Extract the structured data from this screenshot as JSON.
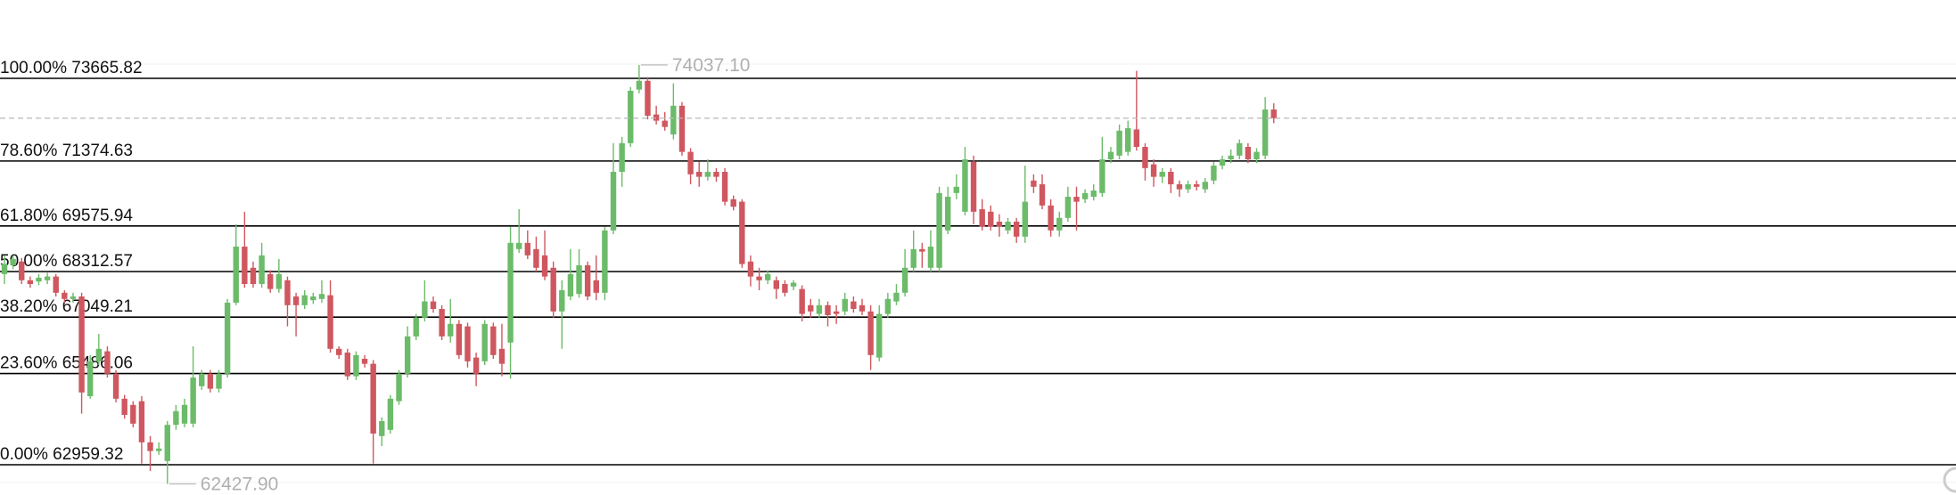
{
  "chart_data": {
    "type": "candlestick",
    "up_color": "#6cbb6a",
    "down_color": "#cf575f",
    "level_color": "#000000",
    "last_price_line": true,
    "levels": [
      {
        "label": "100.00%",
        "value": 73665.82
      },
      {
        "label": "78.60%",
        "value": 71374.63
      },
      {
        "label": "61.80%",
        "value": 69575.94
      },
      {
        "label": "50.00%",
        "value": 68312.57
      },
      {
        "label": "38.20%",
        "value": 67049.21
      },
      {
        "label": "23.60%",
        "value": 65486.06
      },
      {
        "label": "0.00%",
        "value": 62959.32
      }
    ],
    "high_marker": {
      "value": 74037.1,
      "label": "74037.10"
    },
    "low_marker": {
      "value": 62427.9,
      "label": "62427.90"
    },
    "ohlc": [
      [
        68243,
        68761,
        67967,
        68520
      ],
      [
        68485,
        68761,
        68381,
        68658
      ],
      [
        68589,
        68692,
        67967,
        68071
      ],
      [
        68071,
        68174,
        67863,
        67967
      ],
      [
        68036,
        68243,
        67933,
        68140
      ],
      [
        68071,
        68278,
        67967,
        68174
      ],
      [
        68174,
        68243,
        67622,
        67725
      ],
      [
        67725,
        67794,
        67449,
        67553
      ],
      [
        67553,
        67725,
        67449,
        67622
      ],
      [
        67622,
        67725,
        64375,
        64962
      ],
      [
        64858,
        65998,
        64789,
        65825
      ],
      [
        65825,
        66585,
        65722,
        66171
      ],
      [
        66102,
        66240,
        65376,
        65480
      ],
      [
        65480,
        65584,
        64686,
        64789
      ],
      [
        64789,
        64893,
        64237,
        64340
      ],
      [
        64617,
        64720,
        63995,
        64098
      ],
      [
        64720,
        64858,
        62993,
        63580
      ],
      [
        63580,
        63753,
        62786,
        63339
      ],
      [
        63339,
        63580,
        63235,
        63408
      ],
      [
        63062,
        64168,
        62427.9,
        64064
      ],
      [
        64064,
        64617,
        63926,
        64444
      ],
      [
        64098,
        64789,
        63995,
        64617
      ],
      [
        64098,
        66240,
        63995,
        65376
      ],
      [
        65135,
        65584,
        65031,
        65480
      ],
      [
        65480,
        65584,
        64962,
        65066
      ],
      [
        65066,
        65584,
        64962,
        65480
      ],
      [
        65480,
        67553,
        65376,
        67449
      ],
      [
        67449,
        69625,
        67380,
        69003
      ],
      [
        69003,
        69970,
        67863,
        67967
      ],
      [
        68416,
        68589,
        67863,
        67967
      ],
      [
        67967,
        69107,
        67863,
        68761
      ],
      [
        68243,
        68347,
        67725,
        67829
      ],
      [
        67829,
        68658,
        67725,
        68243
      ],
      [
        68071,
        68174,
        66793,
        67380
      ],
      [
        67622,
        67725,
        66516,
        67380
      ],
      [
        67380,
        67794,
        67276,
        67656
      ],
      [
        67518,
        67725,
        67415,
        67622
      ],
      [
        67553,
        68071,
        67449,
        67691
      ],
      [
        67656,
        68071,
        66067,
        66171
      ],
      [
        66171,
        66240,
        65895,
        65998
      ],
      [
        66067,
        66171,
        65307,
        65411
      ],
      [
        65411,
        66102,
        65307,
        65998
      ],
      [
        65895,
        65998,
        65653,
        65756
      ],
      [
        65756,
        65860,
        62993,
        63822
      ],
      [
        63753,
        64271,
        63477,
        64168
      ],
      [
        63926,
        64893,
        63822,
        64789
      ],
      [
        64720,
        65584,
        64617,
        65480
      ],
      [
        65480,
        66793,
        65376,
        66516
      ],
      [
        66516,
        67138,
        66413,
        67035
      ],
      [
        67035,
        68071,
        66931,
        67484
      ],
      [
        67484,
        67622,
        67173,
        67276
      ],
      [
        67276,
        67380,
        66413,
        66516
      ],
      [
        66516,
        67553,
        66344,
        66862
      ],
      [
        66862,
        66966,
        65895,
        65998
      ],
      [
        66793,
        66896,
        65653,
        65825
      ],
      [
        65929,
        66067,
        65135,
        65480
      ],
      [
        65825,
        66966,
        65722,
        66862
      ],
      [
        66793,
        66896,
        65895,
        65998
      ],
      [
        66171,
        66862,
        65411,
        65756
      ],
      [
        66344,
        69556,
        65342,
        69107
      ],
      [
        68934,
        70039,
        68830,
        69107
      ],
      [
        69107,
        69452,
        68658,
        68761
      ],
      [
        68934,
        69280,
        68312,
        68416
      ],
      [
        68761,
        69452,
        68071,
        68174
      ],
      [
        68416,
        68589,
        67035,
        67207
      ],
      [
        67207,
        68071,
        66171,
        67794
      ],
      [
        67622,
        68934,
        67518,
        68243
      ],
      [
        67691,
        68934,
        67587,
        68485
      ],
      [
        68485,
        68589,
        67518,
        67622
      ],
      [
        68071,
        68761,
        67518,
        67725
      ],
      [
        67725,
        69556,
        67518,
        69452
      ],
      [
        69452,
        71870,
        69349,
        71075
      ],
      [
        71075,
        72043,
        70661,
        71870
      ],
      [
        71870,
        73424,
        71766,
        73321
      ],
      [
        73355,
        74037.1,
        73252,
        73597
      ],
      [
        73597,
        73700,
        72526,
        72630
      ],
      [
        72664,
        72906,
        72388,
        72492
      ],
      [
        72492,
        72733,
        72215,
        72319
      ],
      [
        72112,
        73528,
        71974,
        72906
      ],
      [
        72906,
        73010,
        71525,
        71628
      ],
      [
        71628,
        71732,
        70730,
        71006
      ],
      [
        71075,
        71352,
        70661,
        70937
      ],
      [
        70937,
        71421,
        70834,
        71075
      ],
      [
        71075,
        71179,
        70799,
        70937
      ],
      [
        71075,
        71179,
        70143,
        70247
      ],
      [
        70316,
        70419,
        70005,
        70108
      ],
      [
        70247,
        70316,
        68416,
        68520
      ],
      [
        68589,
        68761,
        67898,
        68174
      ],
      [
        68174,
        68416,
        67794,
        68071
      ],
      [
        68071,
        68347,
        67967,
        68243
      ],
      [
        68071,
        68174,
        67553,
        67829
      ],
      [
        67967,
        68071,
        67622,
        67725
      ],
      [
        67898,
        68071,
        67794,
        68002
      ],
      [
        67829,
        67933,
        66931,
        67138
      ],
      [
        67380,
        67553,
        67035,
        67207
      ],
      [
        67138,
        67553,
        67035,
        67380
      ],
      [
        67380,
        67484,
        66793,
        67104
      ],
      [
        67207,
        67380,
        66862,
        67138
      ],
      [
        67207,
        67725,
        67104,
        67553
      ],
      [
        67484,
        67622,
        67173,
        67276
      ],
      [
        67380,
        67553,
        67104,
        67207
      ],
      [
        67207,
        67380,
        65584,
        65998
      ],
      [
        65929,
        67380,
        65825,
        67138
      ],
      [
        67138,
        67725,
        67035,
        67553
      ],
      [
        67484,
        67967,
        67380,
        67725
      ],
      [
        67725,
        68934,
        67622,
        68416
      ],
      [
        68416,
        69452,
        68312,
        68934
      ],
      [
        68934,
        69107,
        68416,
        68865
      ],
      [
        68416,
        69452,
        68312,
        69003
      ],
      [
        68416,
        70661,
        68312,
        70488
      ],
      [
        69452,
        70661,
        69349,
        70385
      ],
      [
        70488,
        71006,
        70316,
        70661
      ],
      [
        69970,
        71766,
        69867,
        71421
      ],
      [
        71352,
        71525,
        69625,
        69970
      ],
      [
        70039,
        70316,
        69452,
        69556
      ],
      [
        69970,
        70143,
        69452,
        69556
      ],
      [
        69694,
        69901,
        69280,
        69556
      ],
      [
        69452,
        69798,
        69349,
        69694
      ],
      [
        69694,
        69798,
        69107,
        69280
      ],
      [
        69280,
        71248,
        69107,
        70247
      ],
      [
        70834,
        71006,
        70488,
        70661
      ],
      [
        70730,
        71006,
        70039,
        70143
      ],
      [
        70143,
        70316,
        69280,
        69452
      ],
      [
        69452,
        69970,
        69280,
        69798
      ],
      [
        69798,
        70661,
        69694,
        70385
      ],
      [
        70385,
        70661,
        69452,
        70247
      ],
      [
        70316,
        70592,
        70212,
        70488
      ],
      [
        70385,
        70730,
        70281,
        70557
      ],
      [
        70488,
        72043,
        70385,
        71421
      ],
      [
        71421,
        71766,
        71317,
        71628
      ],
      [
        71525,
        72388,
        71421,
        72215
      ],
      [
        71628,
        72492,
        71525,
        72284
      ],
      [
        72250,
        73873,
        71663,
        71766
      ],
      [
        71766,
        71870,
        70834,
        71179
      ],
      [
        71283,
        71421,
        70661,
        70937
      ],
      [
        70937,
        71179,
        70765,
        71075
      ],
      [
        71075,
        71179,
        70488,
        70730
      ],
      [
        70730,
        70834,
        70385,
        70592
      ],
      [
        70592,
        70834,
        70488,
        70730
      ],
      [
        70730,
        70834,
        70557,
        70661
      ],
      [
        70592,
        70903,
        70488,
        70799
      ],
      [
        70834,
        71352,
        70730,
        71248
      ],
      [
        71248,
        71525,
        71144,
        71421
      ],
      [
        71421,
        71697,
        71317,
        71525
      ],
      [
        71525,
        71974,
        71421,
        71870
      ],
      [
        71766,
        71870,
        71317,
        71421
      ],
      [
        71421,
        71732,
        71317,
        71628
      ],
      [
        71525,
        73148,
        71421,
        72802
      ],
      [
        72802,
        72975,
        72423,
        72561
      ]
    ]
  }
}
